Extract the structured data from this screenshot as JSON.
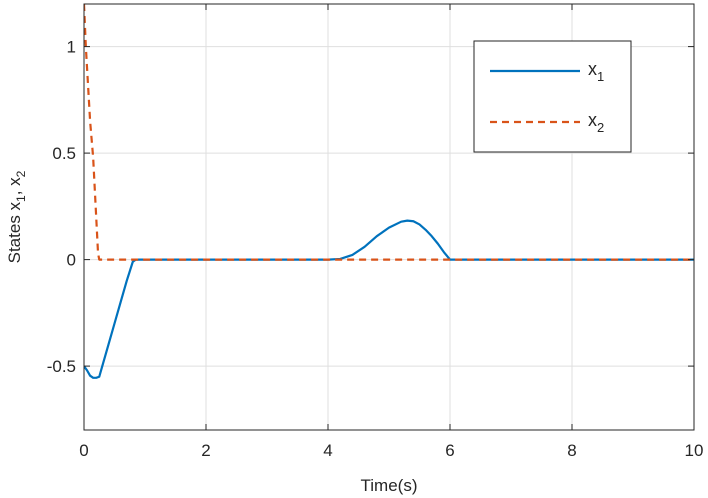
{
  "chart_data": {
    "type": "line",
    "title": "",
    "xlabel": "Time(s)",
    "ylabel": "States x",
    "ylabel_sub1": "1",
    "ylabel_sep": ", x",
    "ylabel_sub2": "2",
    "xlim": [
      0,
      10
    ],
    "ylim": [
      -0.8,
      1.2
    ],
    "xticks": [
      0,
      2,
      4,
      6,
      8,
      10
    ],
    "xtick_labels": [
      "0",
      "2",
      "4",
      "6",
      "8",
      "10"
    ],
    "yticks": [
      -0.5,
      0,
      0.5,
      1
    ],
    "ytick_labels": [
      "-0.5",
      "0",
      "0.5",
      "1"
    ],
    "grid": true,
    "legend_position": "top-right",
    "series": [
      {
        "name": "x",
        "name_sub": "1",
        "color": "#0072BD",
        "style": "solid",
        "x": [
          0,
          0.05,
          0.1,
          0.15,
          0.2,
          0.25,
          0.3,
          0.4,
          0.5,
          0.6,
          0.7,
          0.8,
          0.85,
          1,
          2,
          3,
          3.9,
          4.0,
          4.2,
          4.4,
          4.6,
          4.8,
          5.0,
          5.2,
          5.3,
          5.4,
          5.5,
          5.6,
          5.7,
          5.8,
          5.9,
          6.0,
          7,
          8,
          9,
          10
        ],
        "y": [
          -0.5,
          -0.52,
          -0.545,
          -0.555,
          -0.555,
          -0.55,
          -0.5,
          -0.4,
          -0.3,
          -0.2,
          -0.1,
          -0.01,
          0,
          0,
          0,
          0,
          0,
          0,
          0.003,
          0.022,
          0.06,
          0.11,
          0.15,
          0.178,
          0.183,
          0.18,
          0.165,
          0.14,
          0.11,
          0.075,
          0.035,
          0,
          0,
          0,
          0,
          0
        ]
      },
      {
        "name": "x",
        "name_sub": "2",
        "color": "#D95319",
        "style": "dashed",
        "x": [
          0,
          0.03,
          0.06,
          0.1,
          0.15,
          0.2,
          0.23,
          0.25,
          1,
          2,
          4,
          6,
          8,
          10
        ],
        "y": [
          1.2,
          1.0,
          0.85,
          0.65,
          0.48,
          0.2,
          0.03,
          0,
          0,
          0,
          0,
          0,
          0,
          0
        ]
      }
    ]
  }
}
